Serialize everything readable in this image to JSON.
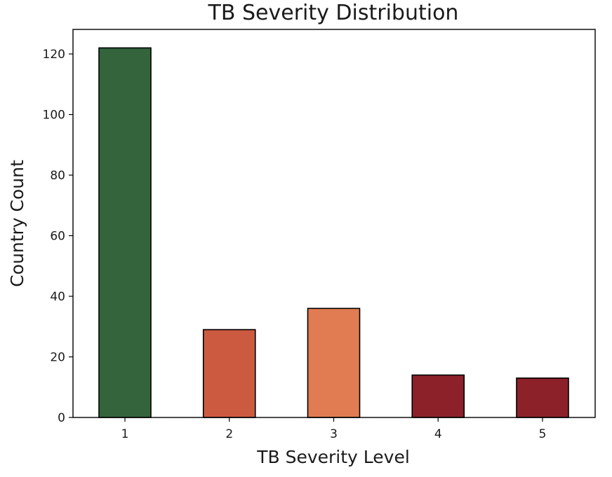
{
  "chart_data": {
    "type": "bar",
    "title": "TB Severity Distribution",
    "xlabel": "TB Severity Level",
    "ylabel": "Country Count",
    "categories": [
      "1",
      "2",
      "3",
      "4",
      "5"
    ],
    "values": [
      122,
      29,
      36,
      14,
      13
    ],
    "colors": [
      "#33643c",
      "#cc5a40",
      "#e07b52",
      "#8c212a",
      "#8c212a"
    ],
    "ylim": [
      0,
      128.1
    ],
    "yticks": [
      0,
      20,
      40,
      60,
      80,
      100,
      120
    ],
    "grid": false,
    "legend": "none"
  }
}
